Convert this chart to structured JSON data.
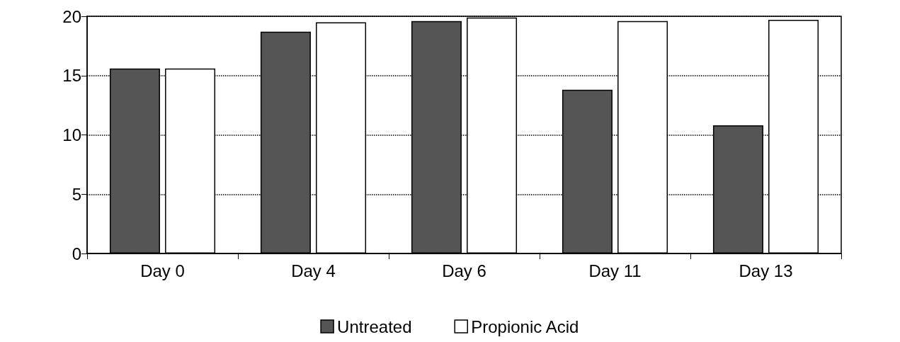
{
  "chart_data": {
    "type": "bar",
    "categories": [
      "Day 0",
      "Day 4",
      "Day 6",
      "Day 11",
      "Day 13"
    ],
    "series": [
      {
        "name": "Untreated",
        "color": "#555555",
        "values": [
          15.6,
          18.7,
          19.6,
          13.8,
          10.8
        ]
      },
      {
        "name": "Propionic Acid",
        "color": "#ffffff",
        "values": [
          15.6,
          19.5,
          19.9,
          19.6,
          19.7
        ]
      }
    ],
    "ylim": [
      0,
      20
    ],
    "yticks": [
      0,
      5,
      10,
      15,
      20
    ],
    "grid": "y",
    "legend": "bottom"
  }
}
